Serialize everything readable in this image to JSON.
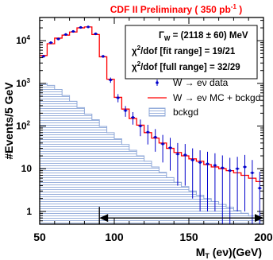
{
  "chart_data": {
    "type": "line",
    "title": "CDF II Preliminary ( 350 pb",
    "title_sup": "-1",
    "title_tail": " )",
    "title_color": "#ff0000",
    "xlabel": "M",
    "xlabel_sub": "T",
    "xlabel_tail": " (eν)(GeV)",
    "ylabel": "#Events/5 GeV",
    "xlim": [
      50,
      200
    ],
    "ylim": [
      0.5,
      35000
    ],
    "yscale": "log",
    "x_ticks": [
      {
        "value": 50,
        "label": "50"
      },
      {
        "value": 100,
        "label": "100"
      },
      {
        "value": 150,
        "label": "150"
      },
      {
        "value": 200,
        "label": "200"
      }
    ],
    "y_ticks": [
      {
        "value": 1,
        "base": "1",
        "exp": ""
      },
      {
        "value": 10,
        "base": "10",
        "exp": ""
      },
      {
        "value": 100,
        "base": "10",
        "exp": "2"
      },
      {
        "value": 1000,
        "base": "10",
        "exp": "3"
      },
      {
        "value": 10000,
        "base": "10",
        "exp": "4"
      }
    ],
    "info": {
      "line1": "Γ",
      "line1_sub": "W",
      "line1_tail": " = (2118 ± 60) MeV",
      "line2": "χ",
      "line2_sup": "2",
      "line2_tail": "/dof [fit range]  =  19/21",
      "line3": "χ",
      "line3_sup": "2",
      "line3_tail": "/dof [full range] = 32/29"
    },
    "legend": [
      {
        "label": "W → eν data",
        "style": "marker",
        "color": "#0000cc"
      },
      {
        "label": "W → eν MC + bckgd",
        "style": "line",
        "color": "#ff0000"
      },
      {
        "label": "bckgd",
        "style": "hatch",
        "color": "#8fa8d8"
      }
    ],
    "fit_range": [
      90,
      200
    ],
    "fit_range_y": 0.7,
    "bin_edges": [
      50,
      55,
      60,
      65,
      70,
      75,
      80,
      85,
      90,
      95,
      100,
      105,
      110,
      115,
      120,
      125,
      130,
      135,
      140,
      145,
      150,
      155,
      160,
      165,
      170,
      175,
      180,
      185,
      190,
      195,
      200
    ],
    "series": [
      {
        "name": "W → eν MC + bckgd",
        "color": "#ff0000",
        "values": [
          4500,
          8500,
          11500,
          13500,
          16000,
          20000,
          21000,
          14000,
          4200,
          1250,
          470,
          250,
          150,
          105,
          70,
          52,
          40,
          30,
          24,
          20,
          17,
          15,
          12.5,
          11,
          10,
          9,
          8,
          7,
          6,
          5
        ]
      },
      {
        "name": "bckgd",
        "color": "#8fa8d8",
        "values": [
          1000,
          900,
          720,
          520,
          380,
          270,
          190,
          140,
          98,
          70,
          50,
          37,
          27,
          20,
          15,
          11,
          8.2,
          6.2,
          4.8,
          3.8,
          3.0,
          2.4,
          2.0,
          1.7,
          1.45,
          1.25,
          1.05,
          0.9,
          0.78,
          0.68
        ]
      },
      {
        "name": "W → eν data",
        "color": "#0000cc",
        "x": [
          52.5,
          57.5,
          62.5,
          67.5,
          72.5,
          77.5,
          82.5,
          87.5,
          92.5,
          97.5,
          102.5,
          107.5,
          112.5,
          117.5,
          122.5,
          127.5,
          132.5,
          137.5,
          142.5,
          147.5,
          152.5,
          157.5,
          162.5,
          167.5,
          172.5,
          177.5,
          182.5,
          187.5,
          192.5,
          197.5
        ],
        "values": [
          4300,
          9000,
          11000,
          14000,
          16500,
          20500,
          21000,
          14500,
          4300,
          1200,
          460,
          230,
          160,
          100,
          72,
          55,
          38,
          31,
          22,
          21,
          16,
          14,
          13,
          12,
          10.5,
          9,
          10,
          11,
          8,
          3.5
        ],
        "errors": [
          300,
          450,
          500,
          550,
          600,
          700,
          700,
          600,
          330,
          170,
          100,
          65,
          52,
          42,
          35,
          30,
          24,
          22,
          18,
          17,
          14,
          13,
          12,
          11,
          10,
          9,
          9,
          10,
          8,
          5
        ]
      }
    ]
  }
}
